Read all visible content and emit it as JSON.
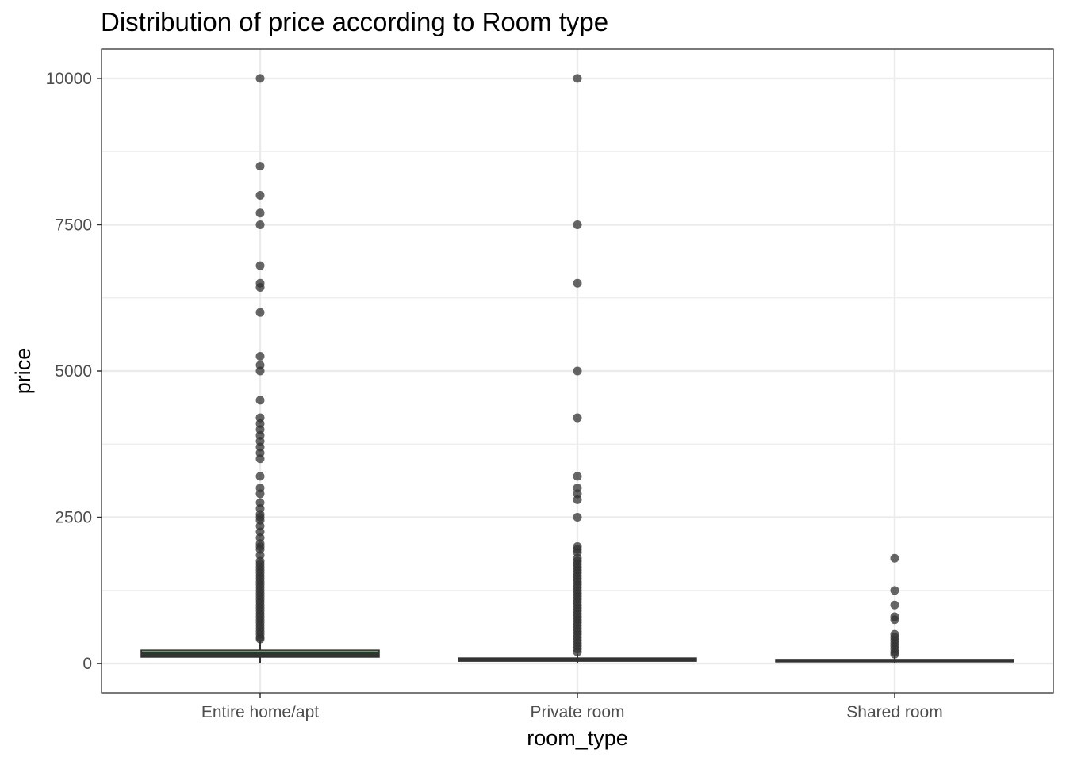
{
  "chart_data": {
    "type": "boxplot",
    "title": "Distribution of price according to Room type",
    "xlabel": "room_type",
    "ylabel": "price",
    "ylim": [
      -500,
      10500
    ],
    "yticks": [
      0,
      2500,
      5000,
      7500,
      10000
    ],
    "yticks_minor": [
      1250,
      3750,
      6250,
      8750
    ],
    "grid": true,
    "categories": [
      "Entire home/apt",
      "Private room",
      "Shared room"
    ],
    "colors": {
      "box_line": "#333333",
      "median": "#4caf50",
      "outlier": "#333333",
      "grid": "#ebebeb",
      "panel_border": "#333333"
    },
    "boxes": [
      {
        "category": "Entire home/apt",
        "q1": 110,
        "median": 170,
        "q3": 230,
        "whisker_low": 0,
        "whisker_high": 400,
        "outliers": [
          10000,
          8500,
          8000,
          7700,
          7500,
          6800,
          6500,
          6430,
          6000,
          5250,
          5100,
          5000,
          4500,
          4200,
          4100,
          4000,
          3900,
          3800,
          3700,
          3600,
          3500,
          3200,
          3000,
          2900,
          2750,
          2650,
          2550,
          2500,
          2450,
          2350,
          2250,
          2150,
          2050,
          2000,
          1950,
          1850,
          1750,
          1700,
          1650,
          1600,
          1550,
          1500,
          1450,
          1400,
          1350,
          1300,
          1250,
          1200,
          1150,
          1100,
          1050,
          1000,
          950,
          900,
          850,
          800,
          750,
          700,
          650,
          600,
          550,
          500,
          450,
          420
        ]
      },
      {
        "category": "Private room",
        "q1": 40,
        "median": 70,
        "q3": 95,
        "whisker_low": 0,
        "whisker_high": 170,
        "outliers": [
          10000,
          7500,
          6500,
          5000,
          4200,
          3200,
          3000,
          2900,
          2800,
          2500,
          2000,
          1950,
          1900,
          1800,
          1750,
          1700,
          1650,
          1600,
          1550,
          1500,
          1450,
          1400,
          1350,
          1300,
          1250,
          1200,
          1150,
          1100,
          1050,
          1000,
          950,
          900,
          850,
          800,
          750,
          700,
          650,
          600,
          550,
          500,
          450,
          400,
          350,
          300,
          250,
          200
        ]
      },
      {
        "category": "Shared room",
        "q1": 30,
        "median": 45,
        "q3": 70,
        "whisker_low": 0,
        "whisker_high": 130,
        "outliers": [
          1800,
          1250,
          1000,
          800,
          750,
          500,
          450,
          400,
          350,
          300,
          250,
          200,
          160
        ]
      }
    ]
  }
}
